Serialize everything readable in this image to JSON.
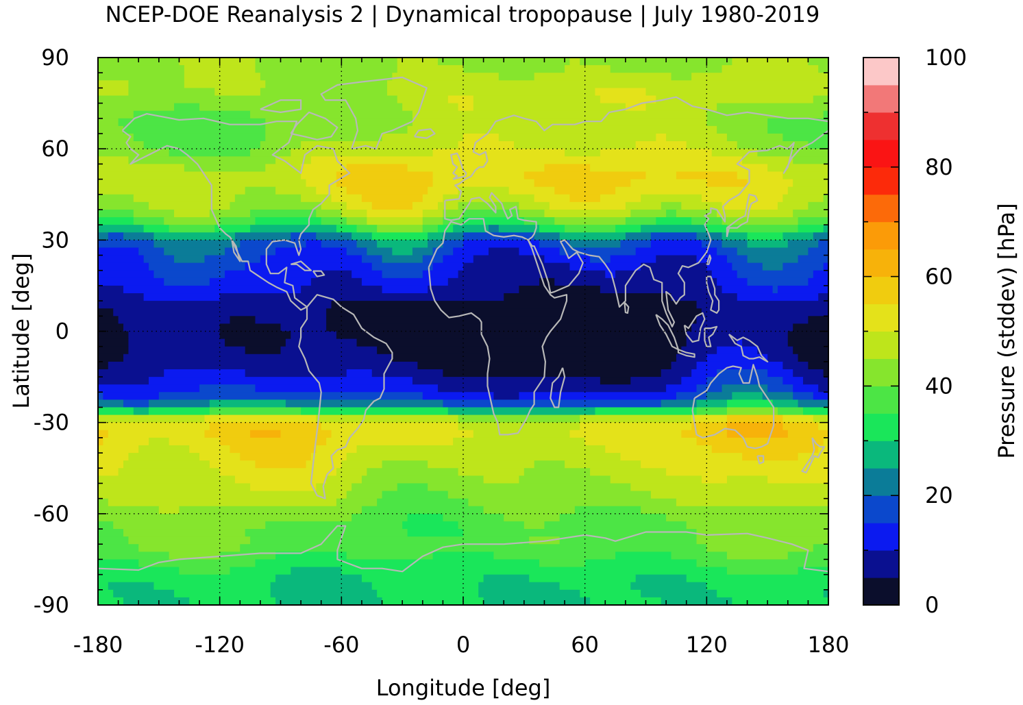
{
  "chart_data": {
    "type": "heatmap",
    "title": "NCEP-DOE Reanalysis 2 | Dynamical tropopause | July 1980-2019",
    "xlabel": "Longitude [deg]",
    "ylabel": "Latitude [deg]",
    "xlim": [
      -180,
      180
    ],
    "ylim": [
      -90,
      90
    ],
    "xticks": [
      "-180",
      "-120",
      "-60",
      "0",
      "60",
      "120",
      "180"
    ],
    "yticks": [
      "90",
      "60",
      "30",
      "0",
      "-30",
      "-60",
      "-90"
    ],
    "grid": true,
    "colorbar": {
      "label": "Pressure (stddev) [hPa]",
      "range": [
        0,
        100
      ],
      "step": 5,
      "ticks": [
        "0",
        "20",
        "40",
        "60",
        "80",
        "100"
      ],
      "colors": [
        "#0b0e2c",
        "#0a1090",
        "#0b1af0",
        "#0b48cc",
        "#0b7c98",
        "#0ab87c",
        "#1ae65a",
        "#4ce545",
        "#86e52d",
        "#bee51b",
        "#e4e21a",
        "#f0cc0f",
        "#f7b20a",
        "#fb9b08",
        "#fc6a09",
        "#fc2a0a",
        "#fa1414",
        "#ee3030",
        "#f27878",
        "#fcc8c8"
      ]
    },
    "grid_dims": {
      "lat_step": 2.5,
      "lon_step": 2.5
    },
    "lat_profile": {
      "lats": [
        90,
        80,
        75,
        70,
        65,
        60,
        55,
        50,
        45,
        40,
        35,
        30,
        25,
        20,
        15,
        12,
        8,
        0,
        -8,
        -12,
        -16,
        -20,
        -23,
        -26,
        -28,
        -32,
        -36,
        -40,
        -45,
        -50,
        -55,
        -60,
        -65,
        -70,
        -75,
        -80,
        -85,
        -90
      ],
      "values": [
        46,
        47,
        44,
        40,
        40,
        41,
        45,
        47,
        44,
        40,
        30,
        15,
        11,
        9,
        8,
        6,
        3,
        2,
        3,
        5,
        8,
        11,
        17,
        28,
        44,
        52,
        50,
        48,
        46,
        44,
        42,
        39,
        37,
        38,
        35,
        31,
        30,
        30
      ]
    },
    "regional_anomalies": [
      {
        "lon": -20,
        "lat": 52,
        "amp": 9,
        "r": 25
      },
      {
        "lon": 65,
        "lat": 42,
        "amp": 14,
        "r": 18
      },
      {
        "lon": 140,
        "lat": 42,
        "amp": 8,
        "r": 18
      },
      {
        "lon": 140,
        "lat": -31,
        "amp": 12,
        "r": 20
      },
      {
        "lon": -95,
        "lat": -36,
        "amp": 8,
        "r": 28
      },
      {
        "lon": 60,
        "lat": 14,
        "amp": -6,
        "r": 28
      },
      {
        "lon": -10,
        "lat": 20,
        "amp": -5,
        "r": 18
      },
      {
        "lon": 150,
        "lat": 24,
        "amp": 6,
        "r": 16
      },
      {
        "lon": -140,
        "lat": 28,
        "amp": 12,
        "r": 16
      },
      {
        "lon": -30,
        "lat": 30,
        "amp": 12,
        "r": 14
      },
      {
        "lon": -150,
        "lat": 66,
        "amp": -6,
        "r": 18
      },
      {
        "lon": -45,
        "lat": 78,
        "amp": -5,
        "r": 12
      },
      {
        "lon": -40,
        "lat": -62,
        "amp": -4,
        "r": 20
      }
    ]
  }
}
